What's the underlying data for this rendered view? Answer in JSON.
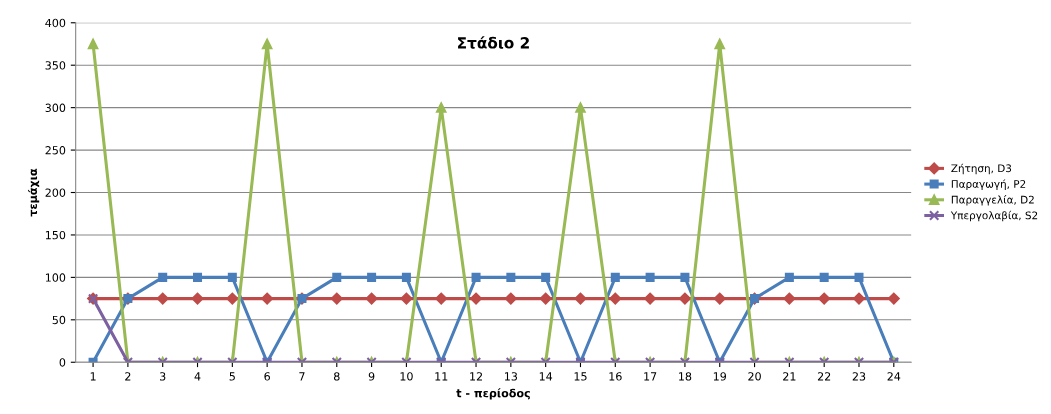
{
  "chart_data": {
    "type": "line",
    "title": "Στάδιο 2",
    "xlabel": "t - περίοδος",
    "ylabel": "τεμάχια",
    "categories": [
      "1",
      "2",
      "3",
      "4",
      "5",
      "6",
      "7",
      "8",
      "9",
      "10",
      "11",
      "12",
      "13",
      "14",
      "15",
      "16",
      "17",
      "18",
      "19",
      "20",
      "21",
      "22",
      "23",
      "24"
    ],
    "series": [
      {
        "name": "Ζήτηση, D3",
        "color": "#be4b48",
        "marker": "diamond",
        "values": [
          75,
          75,
          75,
          75,
          75,
          75,
          75,
          75,
          75,
          75,
          75,
          75,
          75,
          75,
          75,
          75,
          75,
          75,
          75,
          75,
          75,
          75,
          75,
          75
        ]
      },
      {
        "name": "Παραγωγή, P2",
        "color": "#4a7ebb",
        "marker": "square",
        "values": [
          0,
          75,
          100,
          100,
          100,
          0,
          75,
          100,
          100,
          100,
          0,
          100,
          100,
          100,
          0,
          100,
          100,
          100,
          0,
          75,
          100,
          100,
          100,
          0
        ]
      },
      {
        "name": "Παραγγελία, D2",
        "color": "#98b954",
        "marker": "triangle",
        "values": [
          375,
          0,
          0,
          0,
          0,
          375,
          0,
          0,
          0,
          0,
          300,
          0,
          0,
          0,
          300,
          0,
          0,
          0,
          375,
          0,
          0,
          0,
          0,
          0
        ]
      },
      {
        "name": "Υπεργολαβία, S2",
        "color": "#7d60a0",
        "marker": "cross",
        "values": [
          75,
          0,
          0,
          0,
          0,
          0,
          0,
          0,
          0,
          0,
          0,
          0,
          0,
          0,
          0,
          0,
          0,
          0,
          0,
          0,
          0,
          0,
          0,
          0
        ]
      }
    ],
    "ylim": [
      0,
      400
    ],
    "yticks": [
      0,
      50,
      100,
      150,
      200,
      250,
      300,
      350,
      400
    ],
    "grid": "y",
    "legend": "right"
  }
}
